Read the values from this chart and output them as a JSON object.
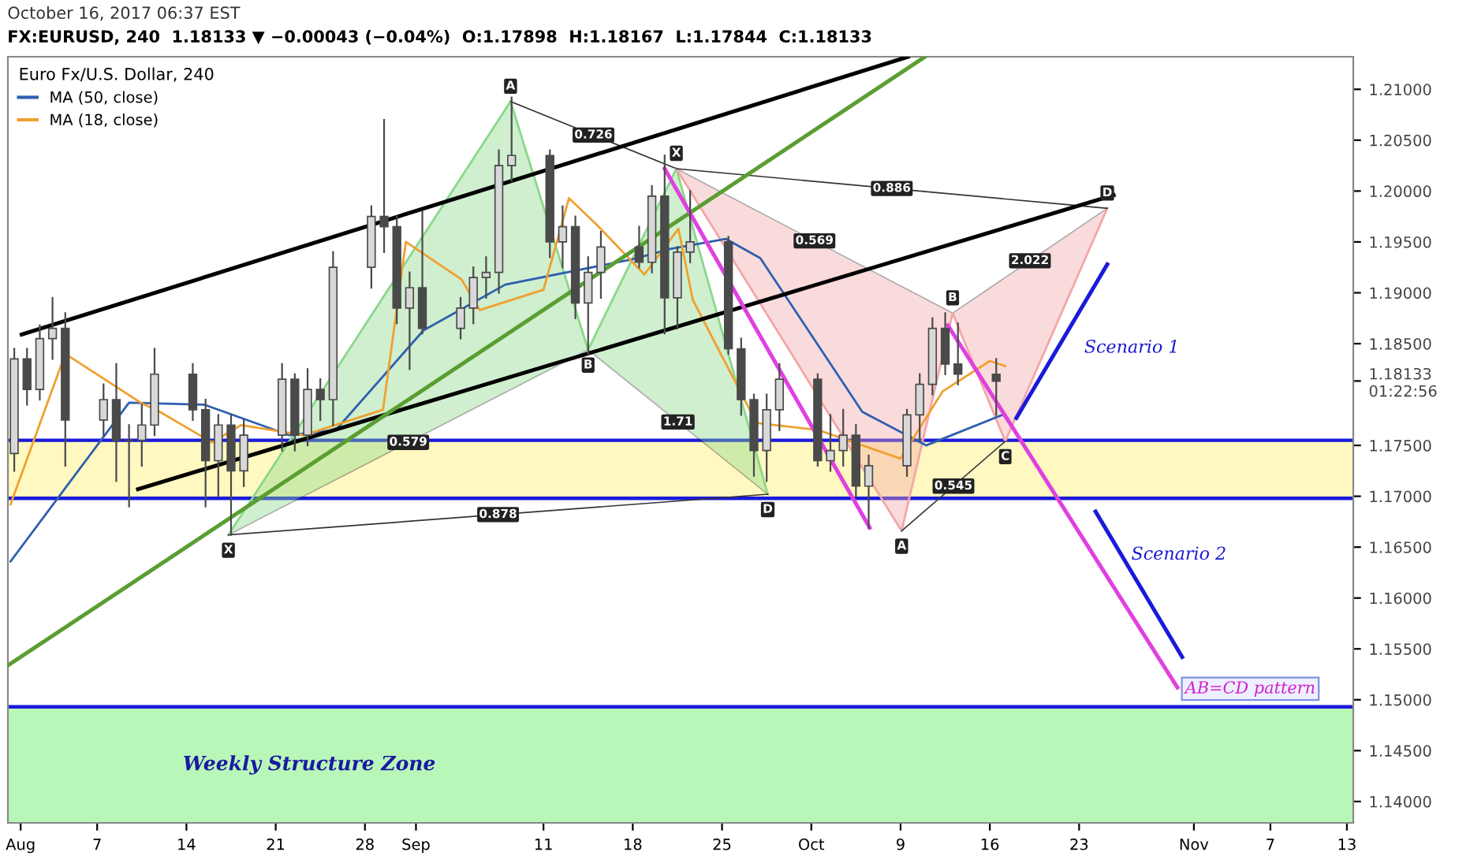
{
  "chart_data": {
    "type": "candlestick",
    "title": "FX:EURUSD, 240  1.18133 ▼ −0.00043 (−0.04%)  O:1.17898  H:1.18167  L:1.17844  C:1.18133",
    "subtitle": "October 16, 2017 06:37 EST",
    "legend_title": "Euro Fx/U.S. Dollar, 240",
    "legend": "top left",
    "color": "#4a4a4a",
    "x": [
      "2017-07-31T12:00",
      "2017-08-01T12:00",
      "2017-08-02T12:00",
      "2017-08-03T12:00",
      "2017-08-04T12:00",
      "2017-08-07T12:00",
      "2017-08-08T12:00",
      "2017-08-09T12:00",
      "2017-08-10T12:00",
      "2017-08-11T12:00",
      "2017-08-14T12:00",
      "2017-08-15T12:00",
      "2017-08-16T12:00",
      "2017-08-17T12:00",
      "2017-08-18T12:00",
      "2017-08-21T12:00",
      "2017-08-22T12:00",
      "2017-08-23T12:00",
      "2017-08-24T12:00",
      "2017-08-25T12:00",
      "2017-08-28T12:00",
      "2017-08-29T12:00",
      "2017-08-30T12:00",
      "2017-08-31T12:00",
      "2017-09-01T12:00",
      "2017-09-04T12:00",
      "2017-09-05T12:00",
      "2017-09-06T12:00",
      "2017-09-07T12:00",
      "2017-09-08T12:00",
      "2017-09-11T12:00",
      "2017-09-12T12:00",
      "2017-09-13T12:00",
      "2017-09-14T12:00",
      "2017-09-15T12:00",
      "2017-09-18T12:00",
      "2017-09-19T12:00",
      "2017-09-20T12:00",
      "2017-09-21T12:00",
      "2017-09-22T12:00",
      "2017-09-25T12:00",
      "2017-09-26T12:00",
      "2017-09-27T12:00",
      "2017-09-28T12:00",
      "2017-09-29T12:00",
      "2017-10-02T12:00",
      "2017-10-03T12:00",
      "2017-10-04T12:00",
      "2017-10-05T12:00",
      "2017-10-06T12:00",
      "2017-10-09T12:00",
      "2017-10-10T12:00",
      "2017-10-11T12:00",
      "2017-10-12T12:00",
      "2017-10-13T12:00",
      "2017-10-16T12:00"
    ],
    "ohlc": [
      [
        1.1742,
        1.1845,
        1.1725,
        1.1835
      ],
      [
        1.1835,
        1.1845,
        1.179,
        1.1805
      ],
      [
        1.1805,
        1.1868,
        1.1795,
        1.1855
      ],
      [
        1.1855,
        1.1895,
        1.1835,
        1.1865
      ],
      [
        1.1865,
        1.188,
        1.173,
        1.1775
      ],
      [
        1.1775,
        1.181,
        1.176,
        1.1795
      ],
      [
        1.1795,
        1.183,
        1.1715,
        1.1755
      ],
      [
        1.1755,
        1.177,
        1.169,
        1.1755
      ],
      [
        1.1755,
        1.179,
        1.173,
        1.177
      ],
      [
        1.177,
        1.1845,
        1.176,
        1.182
      ],
      [
        1.182,
        1.183,
        1.1775,
        1.1785
      ],
      [
        1.1785,
        1.1795,
        1.169,
        1.1735
      ],
      [
        1.1735,
        1.178,
        1.17,
        1.177
      ],
      [
        1.177,
        1.178,
        1.1662,
        1.1725
      ],
      [
        1.1725,
        1.1775,
        1.171,
        1.176
      ],
      [
        1.176,
        1.183,
        1.1745,
        1.1815
      ],
      [
        1.1815,
        1.182,
        1.1745,
        1.176
      ],
      [
        1.176,
        1.1825,
        1.175,
        1.1805
      ],
      [
        1.1805,
        1.1815,
        1.1775,
        1.1795
      ],
      [
        1.1795,
        1.194,
        1.177,
        1.1925
      ],
      [
        1.1925,
        1.1985,
        1.1905,
        1.1975
      ],
      [
        1.1975,
        1.207,
        1.194,
        1.1965
      ],
      [
        1.1965,
        1.1975,
        1.187,
        1.1885
      ],
      [
        1.1885,
        1.192,
        1.1825,
        1.1905
      ],
      [
        1.1905,
        1.198,
        1.186,
        1.1865
      ],
      [
        1.1865,
        1.1895,
        1.1855,
        1.1885
      ],
      [
        1.1885,
        1.1925,
        1.187,
        1.1915
      ],
      [
        1.1915,
        1.1935,
        1.1895,
        1.192
      ],
      [
        1.192,
        1.204,
        1.19,
        1.2025
      ],
      [
        1.2025,
        1.2092,
        1.201,
        1.2035
      ],
      [
        1.2035,
        1.204,
        1.1935,
        1.195
      ],
      [
        1.195,
        1.1985,
        1.1925,
        1.1965
      ],
      [
        1.1965,
        1.1975,
        1.1875,
        1.189
      ],
      [
        1.189,
        1.1935,
        1.184,
        1.192
      ],
      [
        1.192,
        1.196,
        1.1895,
        1.1945
      ],
      [
        1.1945,
        1.1965,
        1.1925,
        1.193
      ],
      [
        1.193,
        1.2005,
        1.192,
        1.1995
      ],
      [
        1.1995,
        1.2035,
        1.186,
        1.1895
      ],
      [
        1.1895,
        1.1945,
        1.1865,
        1.194
      ],
      [
        1.194,
        1.2,
        1.193,
        1.195
      ],
      [
        1.195,
        1.1955,
        1.184,
        1.1845
      ],
      [
        1.1845,
        1.1855,
        1.178,
        1.1795
      ],
      [
        1.1795,
        1.18,
        1.172,
        1.1745
      ],
      [
        1.1745,
        1.18,
        1.1715,
        1.1785
      ],
      [
        1.1785,
        1.183,
        1.1765,
        1.1815
      ],
      [
        1.1815,
        1.182,
        1.173,
        1.1735
      ],
      [
        1.1735,
        1.178,
        1.1725,
        1.1745
      ],
      [
        1.1745,
        1.1785,
        1.173,
        1.176
      ],
      [
        1.176,
        1.177,
        1.17,
        1.171
      ],
      [
        1.171,
        1.174,
        1.1669,
        1.173
      ],
      [
        1.173,
        1.1785,
        1.172,
        1.178
      ],
      [
        1.178,
        1.182,
        1.1755,
        1.181
      ],
      [
        1.181,
        1.1875,
        1.18,
        1.1865
      ],
      [
        1.1865,
        1.188,
        1.182,
        1.183
      ],
      [
        1.183,
        1.187,
        1.181,
        1.182
      ],
      [
        1.182,
        1.1835,
        1.178,
        1.1813
      ]
    ],
    "series": [
      {
        "type": "line",
        "name": "MA (50, close)",
        "color": "#2f5fb0",
        "x": [
          "2017-07-31T05:00",
          "2017-08-09T12:00",
          "2017-08-15T10:00",
          "2017-08-22T02:00",
          "2017-08-25T17:00",
          "2017-09-01T14:00",
          "2017-09-08T00:00",
          "2017-09-18T00:00",
          "2017-09-20T22:00",
          "2017-09-25T07:00",
          "2017-09-28T00:00",
          "2017-10-06T00:00",
          "2017-10-11T00:00",
          "2017-10-17T00:00"
        ],
        "values": [
          1.1636,
          1.1792,
          1.179,
          1.176,
          1.1765,
          1.1863,
          1.1908,
          1.1933,
          1.1943,
          1.1953,
          1.1934,
          1.1783,
          1.175,
          1.178
        ]
      },
      {
        "type": "line",
        "name": "MA (18, close)",
        "color": "#f0a030",
        "x": [
          "2017-07-31T05:00",
          "2017-08-04T12:00",
          "2017-08-10T10:00",
          "2017-08-11T22:00",
          "2017-08-16T00:00",
          "2017-08-18T07:00",
          "2017-08-23T05:00",
          "2017-08-29T10:00",
          "2017-08-31T05:00",
          "2017-09-04T14:00",
          "2017-09-06T00:00",
          "2017-09-11T00:00",
          "2017-09-13T00:00",
          "2017-09-15T02:00",
          "2017-09-18T22:00",
          "2017-09-21T14:00",
          "2017-09-22T17:00",
          "2017-09-27T17:00",
          "2017-10-02T14:00",
          "2017-10-09T00:00",
          "2017-10-12T07:00",
          "2017-10-16T00:00",
          "2017-10-17T05:00"
        ],
        "values": [
          1.1692,
          1.184,
          1.1792,
          1.1783,
          1.1753,
          1.177,
          1.176,
          1.1785,
          1.195,
          1.1913,
          1.1883,
          1.1903,
          1.1993,
          1.1968,
          1.1918,
          1.1963,
          1.1893,
          1.1772,
          1.1765,
          1.1737,
          1.1803,
          1.1833,
          1.1828
        ]
      },
      {
        "type": "line",
        "color": "#8ad88a",
        "x": [
          "2017-08-17T07:00",
          "2017-09-08T10:00",
          "2017-09-14T12:00",
          "2017-09-21T10:00",
          "2017-09-28T14:00"
        ],
        "values": [
          1.1662,
          1.2088,
          1.1844,
          1.2022,
          1.1702
        ],
        "value_labels": [
          "X",
          "A",
          "B",
          null,
          "D"
        ]
      },
      {
        "type": "line",
        "color": "#f4a6a6",
        "x": [
          "2017-09-21T10:00",
          "2017-10-09T02:00",
          "2017-10-13T02:00",
          "2017-10-17T05:00",
          "2017-10-25T05:00"
        ],
        "values": [
          1.2022,
          1.1666,
          1.188,
          1.1754,
          1.1983
        ],
        "value_labels": [
          "X",
          "A",
          "B",
          "C",
          "D"
        ]
      },
      {
        "type": "line",
        "color": "#000000",
        "x": [
          "2017-08-01T02:00",
          "2017-10-09T14:00"
        ],
        "values": [
          1.1859,
          1.2132
        ]
      },
      {
        "type": "line",
        "color": "#000000",
        "x": [
          "2017-08-10T05:00",
          "2017-10-25T17:00"
        ],
        "values": [
          1.1707,
          1.1996
        ]
      },
      {
        "type": "line",
        "color": "#5a9e32",
        "x": [
          "2017-07-31T01:00",
          "2017-10-10T22:00"
        ],
        "values": [
          1.1534,
          1.2132
        ]
      },
      {
        "type": "line",
        "color": "#e040e0",
        "x": [
          "2017-09-20T12:00",
          "2017-10-06T14:00"
        ],
        "values": [
          1.2022,
          1.1669
        ]
      },
      {
        "type": "line",
        "color": "#e040e0",
        "x": [
          "2017-10-12T17:00",
          "2017-10-30T17:00"
        ],
        "values": [
          1.1868,
          1.1512
        ]
      },
      {
        "type": "line",
        "color": "#1a1adb",
        "x": [
          "2017-10-18T02:00",
          "2017-10-25T05:00"
        ],
        "values": [
          1.1777,
          1.1928
        ]
      },
      {
        "type": "line",
        "color": "#1a1adb",
        "x": [
          "2017-10-24T07:00",
          "2017-10-31T02:00"
        ],
        "values": [
          1.1685,
          1.1542
        ]
      }
    ],
    "bands": [
      {
        "axis": "y",
        "from": 1.1698,
        "to": 1.1755,
        "color": "#fff8c0"
      },
      {
        "axis": "y",
        "from": 1.1379,
        "to": 1.1493,
        "color": "#b9f7b9",
        "label": "Weekly Structure Zone"
      }
    ],
    "ref_lines": [
      {
        "axis": "y",
        "value": 1.1755,
        "color": "#1a1adb"
      },
      {
        "axis": "y",
        "value": 1.1698,
        "color": "#1a1adb"
      },
      {
        "axis": "y",
        "value": 1.1493,
        "color": "#1a1adb"
      }
    ],
    "annotations": [
      "0.579",
      "0.726",
      "1.71",
      "0.878",
      "0.569",
      "0.545",
      "2.022",
      "0.886",
      "Scenario 1",
      "Scenario 2",
      "AB=CD pattern"
    ],
    "xlim": [
      "2017-07-31T00:00",
      "2017-11-13T12:00"
    ],
    "xticks": [
      {
        "value": "2017-08-01",
        "label": "Aug"
      },
      {
        "value": "2017-08-07",
        "label": "7"
      },
      {
        "value": "2017-08-14",
        "label": "14"
      },
      {
        "value": "2017-08-21",
        "label": "21"
      },
      {
        "value": "2017-08-28",
        "label": "28"
      },
      {
        "value": "2017-09-01",
        "label": "Sep"
      },
      {
        "value": "2017-09-11",
        "label": "11"
      },
      {
        "value": "2017-09-18",
        "label": "18"
      },
      {
        "value": "2017-09-25",
        "label": "25"
      },
      {
        "value": "2017-10-02",
        "label": "Oct"
      },
      {
        "value": "2017-10-09",
        "label": "9"
      },
      {
        "value": "2017-10-16",
        "label": "16"
      },
      {
        "value": "2017-10-23",
        "label": "23"
      },
      {
        "value": "2017-11-01",
        "label": "Nov"
      },
      {
        "value": "2017-11-07",
        "label": "7"
      },
      {
        "value": "2017-11-13",
        "label": "13"
      }
    ],
    "ylim": [
      1.1379,
      1.2132
    ],
    "yticks": [
      {
        "value": 1.14,
        "label": "1.14000"
      },
      {
        "value": 1.145,
        "label": "1.14500"
      },
      {
        "value": 1.15,
        "label": "1.15000"
      },
      {
        "value": 1.155,
        "label": "1.15500"
      },
      {
        "value": 1.16,
        "label": "1.16000"
      },
      {
        "value": 1.165,
        "label": "1.16500"
      },
      {
        "value": 1.17,
        "label": "1.17000"
      },
      {
        "value": 1.175,
        "label": "1.17500"
      },
      {
        "value": 1.18133,
        "label": "1.18133\n01:22:56"
      },
      {
        "value": 1.185,
        "label": "1.18500"
      },
      {
        "value": 1.19,
        "label": "1.19000"
      },
      {
        "value": 1.195,
        "label": "1.19500"
      },
      {
        "value": 1.2,
        "label": "1.20000"
      },
      {
        "value": 1.205,
        "label": "1.20500"
      },
      {
        "value": 1.21,
        "label": "1.21000"
      }
    ]
  }
}
